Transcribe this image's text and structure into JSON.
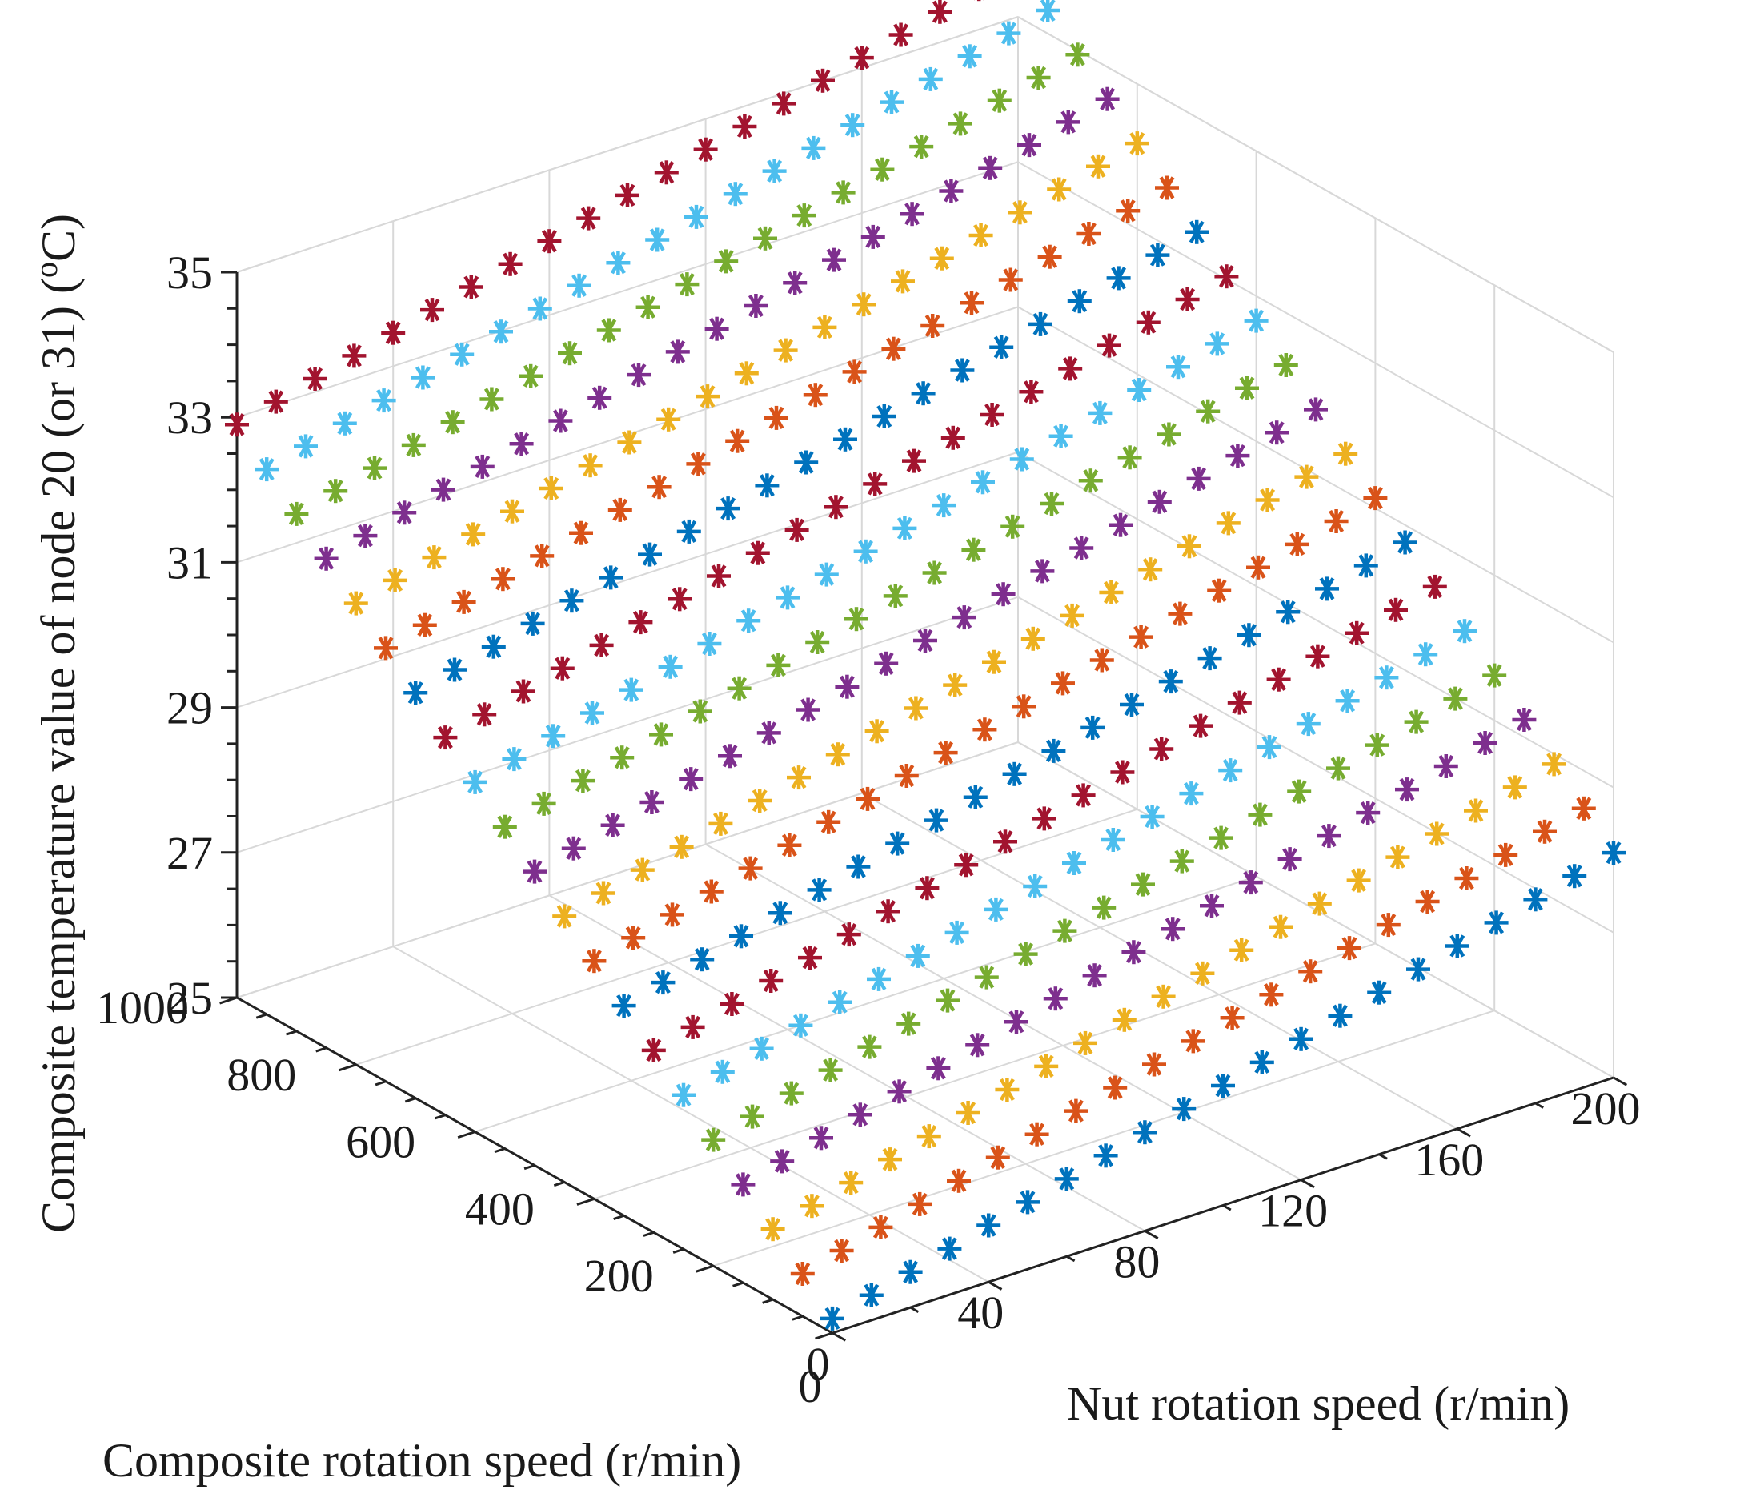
{
  "chart_data": {
    "type": "scatter3d",
    "marker": "asterisk",
    "x": {
      "label": "Nut rotation speed (r/min)",
      "lim": [
        0,
        200
      ],
      "ticks": [
        0,
        40,
        80,
        120,
        160,
        200
      ],
      "tick_labels": [
        "0",
        "40",
        "80",
        "120",
        "160",
        "200"
      ],
      "grid_step": 20
    },
    "y": {
      "label": "Composite rotation speed (r/min)",
      "lim": [
        0,
        1000
      ],
      "ticks": [
        0,
        200,
        400,
        600,
        800,
        1000
      ],
      "tick_labels": [
        "0",
        "200",
        "400",
        "600",
        "800",
        "1000"
      ],
      "grid_step": 50
    },
    "z": {
      "label_main": "Composite temperature value of node 20 (or 31) (",
      "label_deg": "o",
      "label_end": "C)",
      "lim": [
        25,
        35
      ],
      "ticks": [
        25,
        27,
        29,
        31,
        33,
        35
      ],
      "tick_labels": [
        "25",
        "27",
        "29",
        "31",
        "33",
        "35"
      ]
    },
    "grid_points": {
      "x_count": 21,
      "x_step": 10,
      "y_count": 21,
      "y_step": 50
    },
    "surface": {
      "description_values": "temperature at grid corners",
      "z_at_x0_y0": 25.2,
      "z_at_x200_y0": 28.1,
      "z_at_x0_y1000": 32.9,
      "z_at_x200_y1000": 35.7
    },
    "series_colors": [
      "#0072BD",
      "#D95319",
      "#EDB120",
      "#7E2F8E",
      "#77AC30",
      "#4DBEEE",
      "#A2142F"
    ],
    "grid": true,
    "box": true
  }
}
